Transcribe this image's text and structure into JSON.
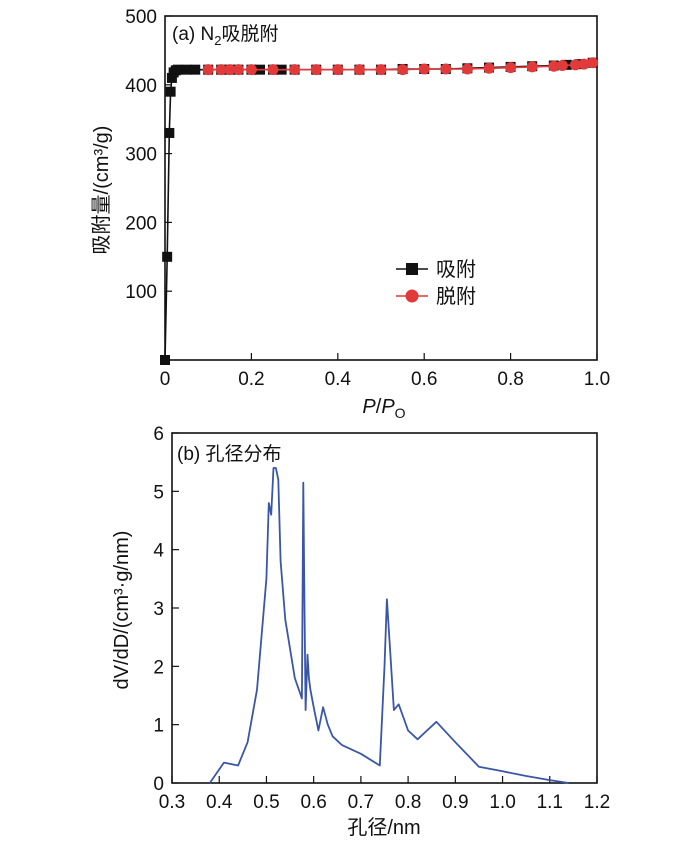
{
  "chart_data": [
    {
      "type": "line",
      "title": "(a) N2吸脱附",
      "title_parts": {
        "prefix": "(a) N",
        "sub": "2",
        "suffix": "吸脱附"
      },
      "xlabel": "P/PO",
      "xlabel_parts": {
        "p1": "P",
        "slash": "/",
        "p2": "P",
        "sub": "O"
      },
      "ylabel": "吸附量/(cm³/g)",
      "xlim": [
        0,
        1.0
      ],
      "ylim": [
        0,
        500
      ],
      "xticks": [
        "0",
        "0.2",
        "0.4",
        "0.6",
        "0.8",
        "1.0"
      ],
      "yticks": [
        "100",
        "200",
        "300",
        "400",
        "500"
      ],
      "legend_position": "center-right",
      "series": [
        {
          "name": "吸附",
          "color": "#111111",
          "marker": "square",
          "x": [
            0.0,
            0.005,
            0.01,
            0.013,
            0.016,
            0.02,
            0.025,
            0.03,
            0.05,
            0.07,
            0.1,
            0.13,
            0.15,
            0.17,
            0.2,
            0.22,
            0.25,
            0.27,
            0.3,
            0.35,
            0.4,
            0.45,
            0.5,
            0.55,
            0.6,
            0.65,
            0.7,
            0.75,
            0.8,
            0.85,
            0.9,
            0.93,
            0.96,
            0.99
          ],
          "y": [
            0,
            150,
            330,
            390,
            410,
            418,
            421,
            422,
            422,
            422,
            422,
            422,
            422,
            422,
            422,
            422,
            422,
            422,
            422,
            422,
            422,
            422,
            422,
            423,
            423,
            423,
            424,
            425,
            426,
            427,
            428,
            429,
            430,
            432
          ]
        },
        {
          "name": "脱附",
          "color": "#e03a3a",
          "marker": "circle",
          "x": [
            0.99,
            0.97,
            0.95,
            0.92,
            0.9,
            0.85,
            0.8,
            0.75,
            0.7,
            0.65,
            0.6,
            0.55,
            0.5,
            0.45,
            0.4,
            0.35,
            0.3,
            0.25,
            0.2,
            0.17,
            0.15,
            0.13,
            0.1
          ],
          "y": [
            432,
            430,
            429,
            428,
            427,
            426,
            425,
            424,
            423,
            423,
            423,
            422,
            422,
            422,
            422,
            422,
            422,
            422,
            422,
            422,
            422,
            422,
            422
          ]
        }
      ]
    },
    {
      "type": "line",
      "title": "(b) 孔径分布",
      "xlabel": "孔径/nm",
      "ylabel": "dV/dD/(cm³·g/nm)",
      "xlim": [
        0.3,
        1.2
      ],
      "ylim": [
        0,
        6
      ],
      "xticks": [
        "0.3",
        "0.4",
        "0.5",
        "0.6",
        "0.7",
        "0.8",
        "0.9",
        "1.0",
        "1.1",
        "1.2"
      ],
      "yticks": [
        "0",
        "1",
        "2",
        "3",
        "4",
        "5",
        "6"
      ],
      "series": [
        {
          "color": "#3a56a6",
          "x": [
            0.38,
            0.41,
            0.44,
            0.46,
            0.48,
            0.5,
            0.505,
            0.51,
            0.515,
            0.52,
            0.525,
            0.53,
            0.54,
            0.56,
            0.575,
            0.578,
            0.58,
            0.583,
            0.587,
            0.59,
            0.593,
            0.6,
            0.61,
            0.62,
            0.63,
            0.64,
            0.66,
            0.7,
            0.74,
            0.75,
            0.755,
            0.77,
            0.78,
            0.8,
            0.82,
            0.84,
            0.86,
            0.9,
            0.95,
            1.0,
            1.05,
            1.1,
            1.14
          ],
          "y": [
            0,
            0.35,
            0.3,
            0.7,
            1.6,
            3.5,
            4.8,
            4.6,
            5.4,
            5.4,
            5.2,
            3.8,
            2.8,
            1.8,
            1.45,
            5.15,
            3.5,
            1.25,
            2.2,
            1.8,
            1.6,
            1.3,
            0.9,
            1.3,
            1.0,
            0.8,
            0.65,
            0.5,
            0.3,
            2.0,
            3.15,
            1.25,
            1.35,
            0.9,
            0.75,
            0.9,
            1.05,
            0.7,
            0.28,
            0.2,
            0.12,
            0.05,
            0.0
          ]
        }
      ]
    }
  ]
}
